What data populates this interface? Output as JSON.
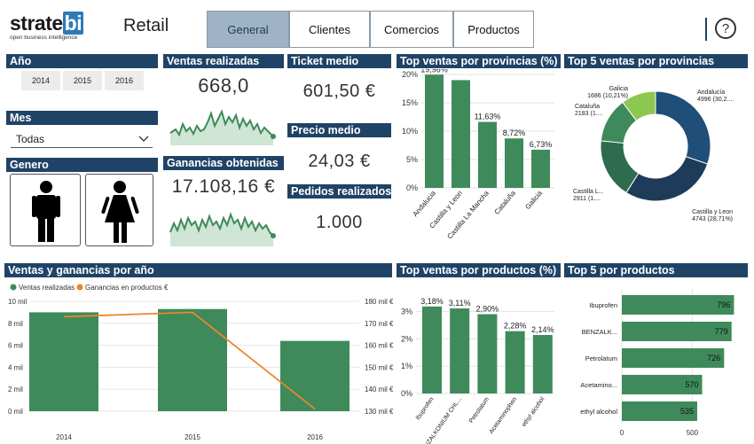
{
  "logo": {
    "text_strate": "strate",
    "text_bi": "bi",
    "tagline": "open business intelligence"
  },
  "app_title": "Retail",
  "tabs": [
    {
      "label": "General"
    },
    {
      "label": "Clientes"
    },
    {
      "label": "Comercios"
    },
    {
      "label": "Productos"
    }
  ],
  "help_label": "?",
  "year_filter": {
    "title": "Año",
    "options": [
      "2014",
      "2015",
      "2016"
    ]
  },
  "month_filter": {
    "title": "Mes",
    "selected": "Todas"
  },
  "gender_filter": {
    "title": "Genero"
  },
  "kpis": {
    "ventas": {
      "title": "Ventas realizadas",
      "value": "668,0"
    },
    "ganancias": {
      "title": "Ganancias obtenidas",
      "value": "17.108,16 €"
    },
    "ticket": {
      "title": "Ticket medio",
      "value": "601,50 €"
    },
    "precio": {
      "title": "Precio medio",
      "value": "24,03 €"
    },
    "pedidos": {
      "title": "Pedidos realizados",
      "value": "1.000"
    }
  },
  "colors": {
    "header": "#1f4366",
    "bar": "#3f8a5a",
    "line": "#e8872c",
    "donut": [
      "#1f4e79",
      "#1e3b5a",
      "#2e6b4f",
      "#3f8a5a",
      "#8cc74f"
    ]
  },
  "chart_data": [
    {
      "type": "bar",
      "title": "Top ventas por provincias (%)",
      "categories": [
        "Andalucia",
        "Castilla y Leon",
        "Castilla La Mancha",
        "Cataluña",
        "Galicia"
      ],
      "values": [
        19.96,
        19.0,
        11.63,
        8.72,
        6.73
      ],
      "data_labels": [
        "19,96%",
        "",
        "11,63%",
        "8,72%",
        "6,73%"
      ],
      "ylim": [
        0,
        20
      ],
      "yticks": [
        "0%",
        "5%",
        "10%",
        "15%",
        "20%"
      ]
    },
    {
      "type": "pie",
      "title": "Top 5 ventas por provincias",
      "slices": [
        {
          "name": "Andalucia",
          "value": 4996,
          "label": "Andalucía",
          "sublabel": "4996 (30,2...."
        },
        {
          "name": "Castilla y Leon",
          "value": 4743,
          "label": "Castilla y Leon",
          "sublabel": "4743 (28,71%)"
        },
        {
          "name": "Castilla L...",
          "value": 2911,
          "label": "Castilla L...",
          "sublabel": "2911 (1...."
        },
        {
          "name": "Cataluña",
          "value": 2183,
          "label": "Cataluña",
          "sublabel": "2183 (1...."
        },
        {
          "name": "Galicia",
          "value": 1686,
          "label": "Galicia",
          "sublabel": "1686 (10,21%)"
        }
      ]
    },
    {
      "type": "bar",
      "title": "Ventas y ganancias por año",
      "categories": [
        "2014",
        "2015",
        "2016"
      ],
      "series": [
        {
          "name": "Ventas realizadas",
          "values": [
            9000,
            9300,
            6400
          ]
        },
        {
          "name": "Ganancias en productos €",
          "values": [
            173,
            175,
            131
          ]
        }
      ],
      "ylim": [
        0,
        10000
      ],
      "yticks": [
        "0 mil",
        "2 mil",
        "4 mil",
        "6 mil",
        "8 mil",
        "10 mil"
      ],
      "y2lim": [
        130,
        180
      ],
      "y2ticks": [
        "130 mil €",
        "140 mil €",
        "150 mil €",
        "160 mil €",
        "170 mil €",
        "180 mil €"
      ]
    },
    {
      "type": "bar",
      "title": "Top ventas por productos (%)",
      "categories": [
        "Ibuprofen",
        "BENZALKONIUM CHL...",
        "Petrolatum",
        "Acetaminophen",
        "ethyl alcohol"
      ],
      "values": [
        3.18,
        3.11,
        2.9,
        2.28,
        2.14
      ],
      "data_labels": [
        "3,18%",
        "3,11%",
        "2,90%",
        "2,28%",
        "2,14%"
      ],
      "ylim": [
        0,
        3.5
      ],
      "yticks": [
        "0%",
        "1%",
        "2%",
        "3%"
      ]
    },
    {
      "type": "bar",
      "title": "Top 5 por productos",
      "categories": [
        "Ibuprofen",
        "BENZALK...",
        "Petrolatum",
        "Acetamino...",
        "ethyl alcohol"
      ],
      "values": [
        796,
        779,
        726,
        570,
        535
      ],
      "xlim": [
        0,
        850
      ],
      "xticks": [
        "0",
        "500"
      ]
    }
  ]
}
